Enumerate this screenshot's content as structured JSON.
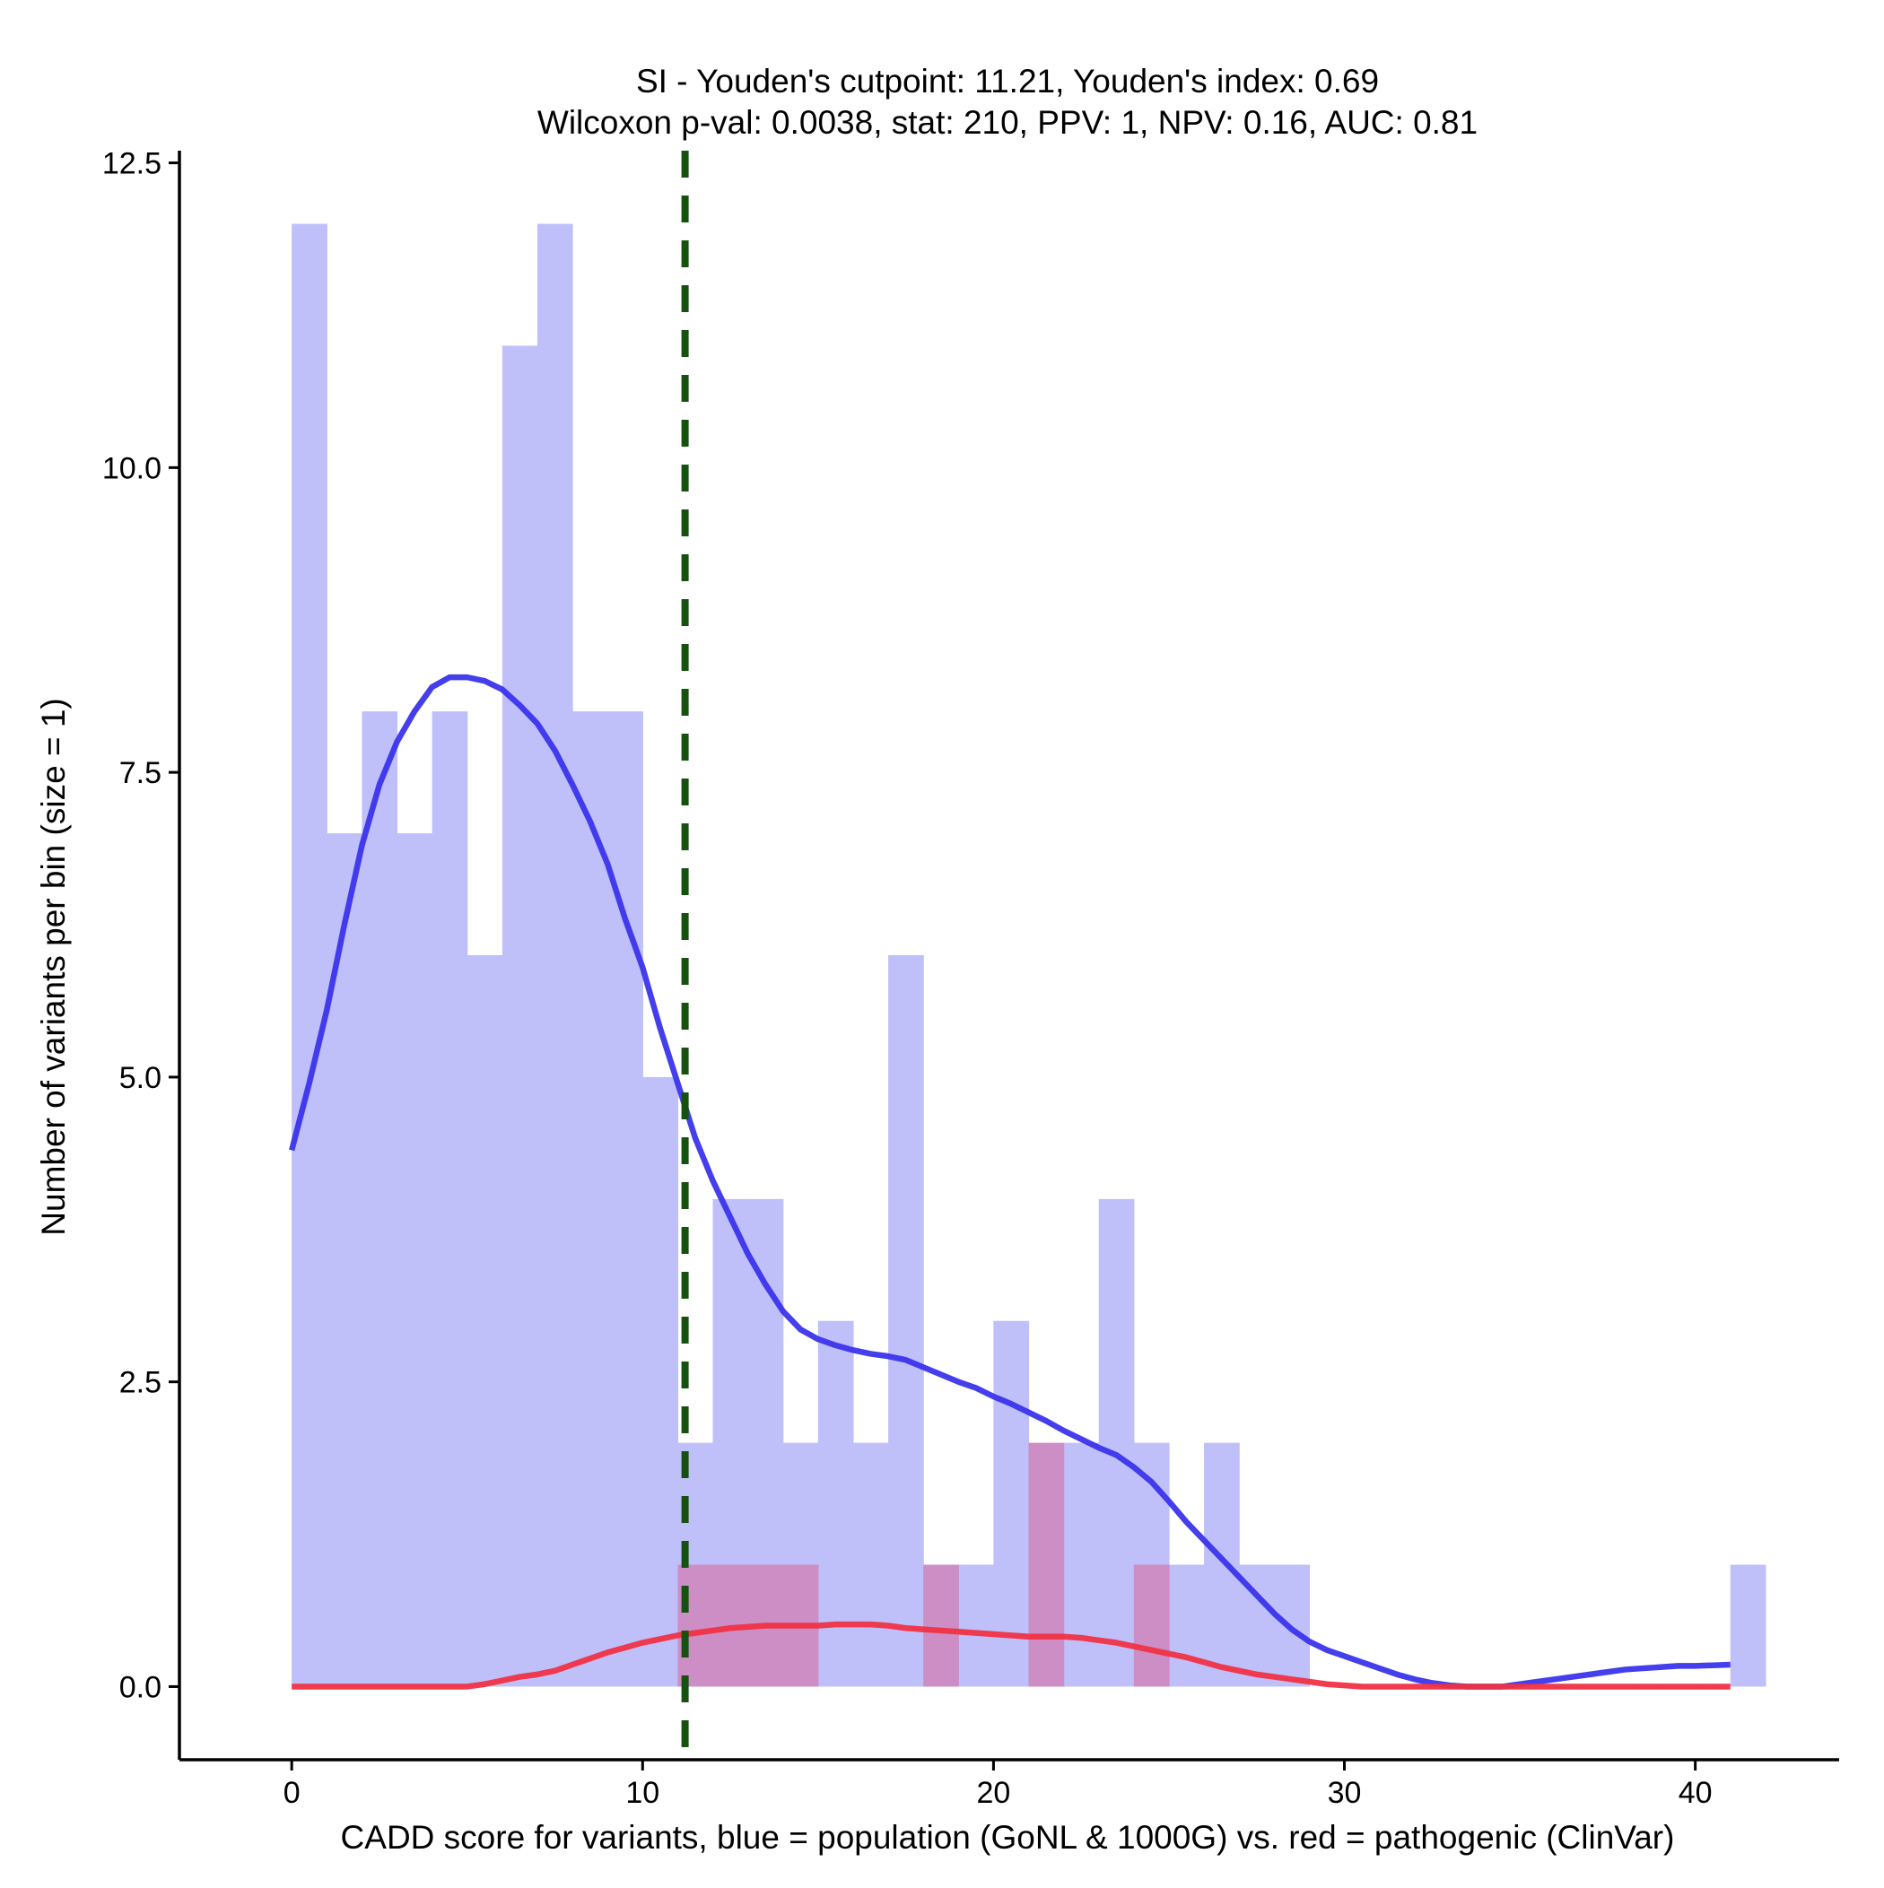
{
  "chart_data": {
    "type": "bar",
    "title": "SI - Youden's cutpoint: 11.21, Youden's index: 0.69",
    "subtitle": "Wilcoxon p-val: 0.0038, stat: 210, PPV: 1, NPV: 0.16, AUC: 0.81",
    "xlabel": "CADD score for variants, blue = population (GoNL & 1000G) vs. red = pathogenic (ClinVar)",
    "ylabel": "Number of variants per bin (size = 1)",
    "xlim": [
      -3.2,
      44.1
    ],
    "ylim": [
      -0.6,
      12.6
    ],
    "x_ticks": [
      0,
      10,
      20,
      30,
      40
    ],
    "x_tick_labels": [
      "0",
      "10",
      "20",
      "30",
      "40"
    ],
    "y_ticks": [
      0,
      2.5,
      5,
      7.5,
      10,
      12.5
    ],
    "y_tick_labels": [
      "0.0",
      "2.5",
      "5.0",
      "7.5",
      "10.0",
      "12.5"
    ],
    "bin_width": 1,
    "cutpoint": 11.21,
    "colors": {
      "population_bar": "#bfbffa",
      "pathogenic_bar": "#cc8ec4",
      "population_line": "#3a34ec",
      "pathogenic_line": "#f03245",
      "cutpoint_line": "#14520e"
    },
    "series": [
      {
        "name": "population (GoNL & 1000G)",
        "bins": [
          [
            0,
            12
          ],
          [
            1,
            7
          ],
          [
            2,
            8
          ],
          [
            3,
            7
          ],
          [
            4,
            8
          ],
          [
            5,
            6
          ],
          [
            6,
            11
          ],
          [
            7,
            12
          ],
          [
            8,
            8
          ],
          [
            9,
            8
          ],
          [
            10,
            5
          ],
          [
            11,
            2
          ],
          [
            12,
            4
          ],
          [
            13,
            4
          ],
          [
            14,
            2
          ],
          [
            15,
            3
          ],
          [
            16,
            2
          ],
          [
            17,
            6
          ],
          [
            18,
            1
          ],
          [
            19,
            1
          ],
          [
            20,
            3
          ],
          [
            21,
            1
          ],
          [
            22,
            2
          ],
          [
            23,
            4
          ],
          [
            24,
            2
          ],
          [
            25,
            1
          ],
          [
            26,
            2
          ],
          [
            27,
            1
          ],
          [
            28,
            1
          ],
          [
            41,
            1
          ]
        ],
        "density": [
          [
            0,
            4.4
          ],
          [
            0.5,
            4.95
          ],
          [
            1,
            5.55
          ],
          [
            1.5,
            6.25
          ],
          [
            2,
            6.9
          ],
          [
            2.5,
            7.4
          ],
          [
            3,
            7.75
          ],
          [
            3.5,
            8.0
          ],
          [
            4,
            8.2
          ],
          [
            4.5,
            8.28
          ],
          [
            5,
            8.28
          ],
          [
            5.5,
            8.25
          ],
          [
            6,
            8.18
          ],
          [
            6.5,
            8.05
          ],
          [
            7,
            7.9
          ],
          [
            7.5,
            7.68
          ],
          [
            8,
            7.4
          ],
          [
            8.5,
            7.1
          ],
          [
            9,
            6.75
          ],
          [
            9.5,
            6.3
          ],
          [
            10,
            5.9
          ],
          [
            10.5,
            5.4
          ],
          [
            11,
            4.95
          ],
          [
            11.5,
            4.5
          ],
          [
            12,
            4.15
          ],
          [
            12.5,
            3.85
          ],
          [
            13,
            3.55
          ],
          [
            13.5,
            3.3
          ],
          [
            14,
            3.08
          ],
          [
            14.5,
            2.93
          ],
          [
            15,
            2.85
          ],
          [
            15.5,
            2.8
          ],
          [
            16,
            2.76
          ],
          [
            16.5,
            2.73
          ],
          [
            17,
            2.71
          ],
          [
            17.5,
            2.68
          ],
          [
            18,
            2.62
          ],
          [
            18.5,
            2.56
          ],
          [
            19,
            2.5
          ],
          [
            19.5,
            2.45
          ],
          [
            20,
            2.38
          ],
          [
            20.5,
            2.32
          ],
          [
            21,
            2.25
          ],
          [
            21.5,
            2.18
          ],
          [
            22,
            2.1
          ],
          [
            22.5,
            2.03
          ],
          [
            23,
            1.96
          ],
          [
            23.5,
            1.9
          ],
          [
            24,
            1.8
          ],
          [
            24.5,
            1.68
          ],
          [
            25,
            1.52
          ],
          [
            25.5,
            1.35
          ],
          [
            26,
            1.2
          ],
          [
            26.5,
            1.05
          ],
          [
            27,
            0.9
          ],
          [
            27.5,
            0.75
          ],
          [
            28,
            0.6
          ],
          [
            28.5,
            0.47
          ],
          [
            29,
            0.37
          ],
          [
            29.5,
            0.3
          ],
          [
            30,
            0.25
          ],
          [
            30.5,
            0.2
          ],
          [
            31,
            0.15
          ],
          [
            31.5,
            0.1
          ],
          [
            32,
            0.06
          ],
          [
            32.5,
            0.03
          ],
          [
            33,
            0.01
          ],
          [
            33.5,
            0.0
          ],
          [
            34,
            0.0
          ],
          [
            34.5,
            0.0
          ],
          [
            35,
            0.02
          ],
          [
            35.5,
            0.04
          ],
          [
            36,
            0.06
          ],
          [
            36.5,
            0.08
          ],
          [
            37,
            0.1
          ],
          [
            37.5,
            0.12
          ],
          [
            38,
            0.14
          ],
          [
            38.5,
            0.15
          ],
          [
            39,
            0.16
          ],
          [
            39.5,
            0.17
          ],
          [
            40,
            0.17
          ],
          [
            41,
            0.18
          ]
        ]
      },
      {
        "name": "pathogenic (ClinVar)",
        "bins": [
          [
            11,
            1
          ],
          [
            12,
            1
          ],
          [
            13,
            1
          ],
          [
            14,
            1
          ],
          [
            18,
            1
          ],
          [
            21,
            2
          ],
          [
            24,
            1
          ]
        ],
        "density": [
          [
            0,
            0.0
          ],
          [
            5,
            0.0
          ],
          [
            5.5,
            0.02
          ],
          [
            6,
            0.05
          ],
          [
            6.5,
            0.08
          ],
          [
            7,
            0.1
          ],
          [
            7.5,
            0.13
          ],
          [
            8,
            0.18
          ],
          [
            8.5,
            0.23
          ],
          [
            9,
            0.28
          ],
          [
            9.5,
            0.32
          ],
          [
            10,
            0.36
          ],
          [
            10.5,
            0.39
          ],
          [
            11,
            0.42
          ],
          [
            11.5,
            0.44
          ],
          [
            12,
            0.46
          ],
          [
            12.5,
            0.48
          ],
          [
            13,
            0.49
          ],
          [
            13.5,
            0.5
          ],
          [
            14,
            0.5
          ],
          [
            14.5,
            0.5
          ],
          [
            15,
            0.5
          ],
          [
            15.5,
            0.51
          ],
          [
            16,
            0.51
          ],
          [
            16.5,
            0.51
          ],
          [
            17,
            0.5
          ],
          [
            17.5,
            0.48
          ],
          [
            18,
            0.47
          ],
          [
            18.5,
            0.46
          ],
          [
            19,
            0.45
          ],
          [
            19.5,
            0.44
          ],
          [
            20,
            0.43
          ],
          [
            20.5,
            0.42
          ],
          [
            21,
            0.41
          ],
          [
            21.5,
            0.41
          ],
          [
            22,
            0.41
          ],
          [
            22.5,
            0.4
          ],
          [
            23,
            0.38
          ],
          [
            23.5,
            0.36
          ],
          [
            24,
            0.33
          ],
          [
            24.5,
            0.3
          ],
          [
            25,
            0.27
          ],
          [
            25.5,
            0.24
          ],
          [
            26,
            0.2
          ],
          [
            26.5,
            0.16
          ],
          [
            27,
            0.13
          ],
          [
            27.5,
            0.1
          ],
          [
            28,
            0.08
          ],
          [
            28.5,
            0.06
          ],
          [
            29,
            0.04
          ],
          [
            29.5,
            0.02
          ],
          [
            30,
            0.01
          ],
          [
            30.5,
            0.0
          ],
          [
            41,
            0.0
          ]
        ]
      }
    ]
  }
}
